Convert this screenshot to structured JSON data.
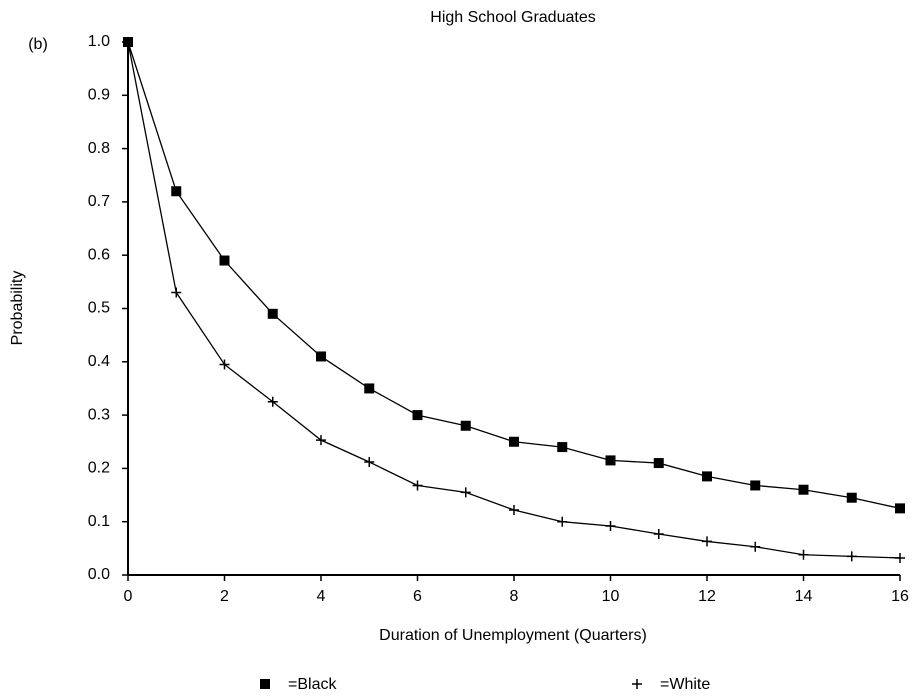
{
  "chart_data": {
    "type": "line",
    "title": "High School Graduates",
    "panel_label": "(b)",
    "x_label": "Duration of Unemployment (Quarters)",
    "y_label": "Probability",
    "x": [
      0,
      1,
      2,
      3,
      4,
      5,
      6,
      7,
      8,
      9,
      10,
      11,
      12,
      13,
      14,
      15,
      16
    ],
    "series": [
      {
        "name": "=Black",
        "color": "#000000",
        "marker": "square",
        "values": [
          1.0,
          0.72,
          0.59,
          0.49,
          0.41,
          0.35,
          0.3,
          0.28,
          0.25,
          0.24,
          0.215,
          0.21,
          0.185,
          0.168,
          0.16,
          0.145,
          0.125
        ]
      },
      {
        "name": "=White",
        "color": "#000000",
        "marker": "plus",
        "values": [
          1.0,
          0.53,
          0.395,
          0.325,
          0.253,
          0.212,
          0.168,
          0.155,
          0.122,
          0.1,
          0.092,
          0.077,
          0.063,
          0.053,
          0.038,
          0.035,
          0.032
        ]
      }
    ],
    "xlim": [
      0,
      16
    ],
    "xticks": [
      0,
      2,
      4,
      6,
      8,
      10,
      12,
      14,
      16
    ],
    "ylim": [
      0,
      1
    ],
    "yticks": [
      {
        "value": 0,
        "label": "0.0"
      },
      0.1,
      0.2,
      0.3,
      0.4,
      0.5,
      0.6,
      0.7,
      0.8,
      0.9,
      {
        "value": 1,
        "label": "1.0"
      }
    ],
    "legend": "bottom"
  }
}
